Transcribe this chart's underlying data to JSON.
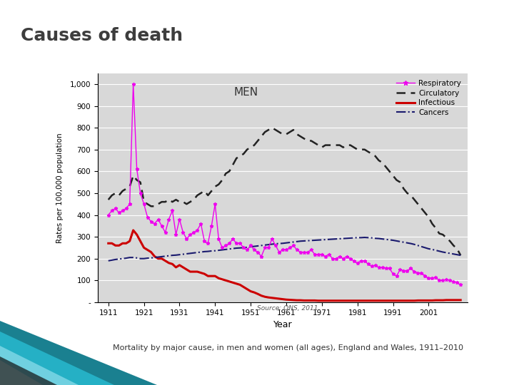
{
  "title": "Causes of death",
  "title_color": "#3d3d3d",
  "separator_color": "#2ab0c5",
  "chart_label": "MEN",
  "ylabel": "Rates per 100,000 population",
  "xlabel": "Year",
  "source_text": "Source: ONS, 2011",
  "caption_text": "Mortality by major cause, in men and women (all ages), England and Wales, 1911–2010",
  "background_color": "#ffffff",
  "plot_bg_color": "#d8d8d8",
  "yticks": [
    0,
    100,
    200,
    300,
    400,
    500,
    600,
    700,
    800,
    900,
    1000
  ],
  "ytick_labels": [
    "-",
    "100",
    "200",
    "300",
    "400",
    "500",
    "600",
    "700",
    "800",
    "900",
    "1,000"
  ],
  "xticks": [
    1911,
    1921,
    1931,
    1941,
    1951,
    1961,
    1971,
    1981,
    1991,
    2001
  ],
  "ylim": [
    0,
    1050
  ],
  "xlim": [
    1908,
    2012
  ],
  "respiratory_years": [
    1911,
    1912,
    1913,
    1914,
    1915,
    1916,
    1917,
    1918,
    1919,
    1920,
    1921,
    1922,
    1923,
    1924,
    1925,
    1926,
    1927,
    1928,
    1929,
    1930,
    1931,
    1932,
    1933,
    1934,
    1935,
    1936,
    1937,
    1938,
    1939,
    1940,
    1941,
    1942,
    1943,
    1944,
    1945,
    1946,
    1947,
    1948,
    1949,
    1950,
    1951,
    1952,
    1953,
    1954,
    1955,
    1956,
    1957,
    1958,
    1959,
    1960,
    1961,
    1962,
    1963,
    1964,
    1965,
    1966,
    1967,
    1968,
    1969,
    1970,
    1971,
    1972,
    1973,
    1974,
    1975,
    1976,
    1977,
    1978,
    1979,
    1980,
    1981,
    1982,
    1983,
    1984,
    1985,
    1986,
    1987,
    1988,
    1989,
    1990,
    1991,
    1992,
    1993,
    1994,
    1995,
    1996,
    1997,
    1998,
    1999,
    2000,
    2001,
    2002,
    2003,
    2004,
    2005,
    2006,
    2007,
    2008,
    2009,
    2010
  ],
  "respiratory_values": [
    400,
    420,
    430,
    410,
    420,
    430,
    450,
    1000,
    610,
    500,
    450,
    390,
    370,
    360,
    380,
    350,
    320,
    380,
    420,
    310,
    380,
    320,
    290,
    310,
    320,
    330,
    360,
    280,
    270,
    350,
    450,
    290,
    250,
    260,
    270,
    290,
    270,
    270,
    250,
    240,
    260,
    240,
    230,
    210,
    250,
    250,
    290,
    260,
    230,
    240,
    240,
    250,
    260,
    240,
    230,
    230,
    230,
    240,
    220,
    220,
    220,
    210,
    220,
    200,
    200,
    210,
    200,
    210,
    200,
    190,
    180,
    190,
    190,
    175,
    165,
    170,
    160,
    160,
    155,
    155,
    130,
    120,
    150,
    145,
    145,
    155,
    140,
    135,
    135,
    120,
    110,
    110,
    115,
    100,
    100,
    105,
    100,
    95,
    90,
    80
  ],
  "circulatory_years": [
    1911,
    1912,
    1913,
    1914,
    1915,
    1916,
    1917,
    1918,
    1919,
    1920,
    1921,
    1922,
    1923,
    1924,
    1925,
    1926,
    1927,
    1928,
    1929,
    1930,
    1931,
    1932,
    1933,
    1934,
    1935,
    1936,
    1937,
    1938,
    1939,
    1940,
    1941,
    1942,
    1943,
    1944,
    1945,
    1946,
    1947,
    1948,
    1949,
    1950,
    1951,
    1952,
    1953,
    1954,
    1955,
    1956,
    1957,
    1958,
    1959,
    1960,
    1961,
    1962,
    1963,
    1964,
    1965,
    1966,
    1967,
    1968,
    1969,
    1970,
    1971,
    1972,
    1973,
    1974,
    1975,
    1976,
    1977,
    1978,
    1979,
    1980,
    1981,
    1982,
    1983,
    1984,
    1985,
    1986,
    1987,
    1988,
    1989,
    1990,
    1991,
    1992,
    1993,
    1994,
    1995,
    1996,
    1997,
    1998,
    1999,
    2000,
    2001,
    2002,
    2003,
    2004,
    2005,
    2006,
    2007,
    2008,
    2009,
    2010
  ],
  "circulatory_values": [
    470,
    490,
    500,
    490,
    510,
    520,
    530,
    580,
    560,
    550,
    460,
    450,
    440,
    440,
    450,
    460,
    460,
    470,
    460,
    470,
    460,
    460,
    450,
    460,
    470,
    490,
    500,
    510,
    490,
    510,
    530,
    540,
    560,
    590,
    600,
    630,
    660,
    670,
    680,
    700,
    710,
    720,
    740,
    760,
    780,
    790,
    800,
    790,
    780,
    770,
    770,
    780,
    790,
    770,
    760,
    750,
    740,
    740,
    730,
    720,
    710,
    720,
    720,
    720,
    720,
    720,
    710,
    720,
    720,
    710,
    700,
    700,
    700,
    690,
    680,
    670,
    650,
    640,
    620,
    600,
    580,
    560,
    550,
    520,
    500,
    490,
    470,
    450,
    430,
    410,
    390,
    360,
    340,
    315,
    310,
    295,
    280,
    260,
    245,
    215
  ],
  "infectious_years": [
    1911,
    1912,
    1913,
    1914,
    1915,
    1916,
    1917,
    1918,
    1919,
    1920,
    1921,
    1922,
    1923,
    1924,
    1925,
    1926,
    1927,
    1928,
    1929,
    1930,
    1931,
    1932,
    1933,
    1934,
    1935,
    1936,
    1937,
    1938,
    1939,
    1940,
    1941,
    1942,
    1943,
    1944,
    1945,
    1946,
    1947,
    1948,
    1949,
    1950,
    1951,
    1952,
    1953,
    1954,
    1955,
    1956,
    1957,
    1958,
    1959,
    1960,
    1961,
    1962,
    1963,
    1964,
    1965,
    1966,
    1967,
    1968,
    1969,
    1970,
    1971,
    1972,
    1973,
    1974,
    1975,
    1976,
    1977,
    1978,
    1979,
    1980,
    1981,
    1982,
    1983,
    1984,
    1985,
    1986,
    1987,
    1988,
    1989,
    1990,
    1991,
    1992,
    1993,
    1994,
    1995,
    1996,
    1997,
    1998,
    1999,
    2000,
    2001,
    2002,
    2003,
    2004,
    2005,
    2006,
    2007,
    2008,
    2009,
    2010
  ],
  "infectious_values": [
    270,
    270,
    260,
    260,
    270,
    270,
    280,
    330,
    310,
    280,
    250,
    240,
    230,
    210,
    200,
    200,
    190,
    180,
    175,
    160,
    170,
    160,
    150,
    140,
    140,
    140,
    135,
    130,
    120,
    120,
    120,
    110,
    105,
    100,
    95,
    90,
    85,
    80,
    70,
    60,
    50,
    45,
    38,
    30,
    25,
    22,
    20,
    18,
    16,
    14,
    12,
    11,
    10,
    9,
    9,
    8,
    8,
    8,
    8,
    7,
    7,
    7,
    7,
    7,
    7,
    7,
    7,
    7,
    7,
    7,
    7,
    7,
    7,
    7,
    7,
    7,
    7,
    7,
    7,
    7,
    7,
    7,
    7,
    7,
    7,
    7,
    7,
    8,
    8,
    8,
    8,
    8,
    9,
    9,
    9,
    10,
    10,
    10,
    10,
    10
  ],
  "cancers_years": [
    1911,
    1912,
    1913,
    1914,
    1915,
    1916,
    1917,
    1918,
    1919,
    1920,
    1921,
    1922,
    1923,
    1924,
    1925,
    1926,
    1927,
    1928,
    1929,
    1930,
    1931,
    1932,
    1933,
    1934,
    1935,
    1936,
    1937,
    1938,
    1939,
    1940,
    1941,
    1942,
    1943,
    1944,
    1945,
    1946,
    1947,
    1948,
    1949,
    1950,
    1951,
    1952,
    1953,
    1954,
    1955,
    1956,
    1957,
    1958,
    1959,
    1960,
    1961,
    1962,
    1963,
    1964,
    1965,
    1966,
    1967,
    1968,
    1969,
    1970,
    1971,
    1972,
    1973,
    1974,
    1975,
    1976,
    1977,
    1978,
    1979,
    1980,
    1981,
    1982,
    1983,
    1984,
    1985,
    1986,
    1987,
    1988,
    1989,
    1990,
    1991,
    1992,
    1993,
    1994,
    1995,
    1996,
    1997,
    1998,
    1999,
    2000,
    2001,
    2002,
    2003,
    2004,
    2005,
    2006,
    2007,
    2008,
    2009,
    2010
  ],
  "cancers_values": [
    190,
    193,
    196,
    198,
    200,
    202,
    205,
    205,
    203,
    200,
    200,
    202,
    203,
    205,
    207,
    209,
    211,
    213,
    215,
    216,
    218,
    220,
    222,
    224,
    226,
    228,
    230,
    232,
    233,
    235,
    236,
    238,
    240,
    242,
    244,
    246,
    248,
    249,
    250,
    252,
    254,
    256,
    258,
    260,
    262,
    264,
    266,
    268,
    269,
    270,
    272,
    274,
    276,
    278,
    280,
    281,
    282,
    283,
    284,
    285,
    286,
    287,
    288,
    289,
    290,
    291,
    292,
    293,
    294,
    295,
    296,
    296,
    297,
    296,
    295,
    293,
    292,
    290,
    288,
    286,
    284,
    281,
    278,
    275,
    272,
    269,
    265,
    260,
    255,
    250,
    245,
    242,
    238,
    234,
    230,
    227,
    224,
    221,
    218,
    215
  ],
  "deco_colors": [
    "#1a6080",
    "#1a8090",
    "#25a0b0",
    "#50c0d0",
    "#90dce8",
    "#c0ecf4"
  ],
  "deco_black_color": "#1a1a1a"
}
